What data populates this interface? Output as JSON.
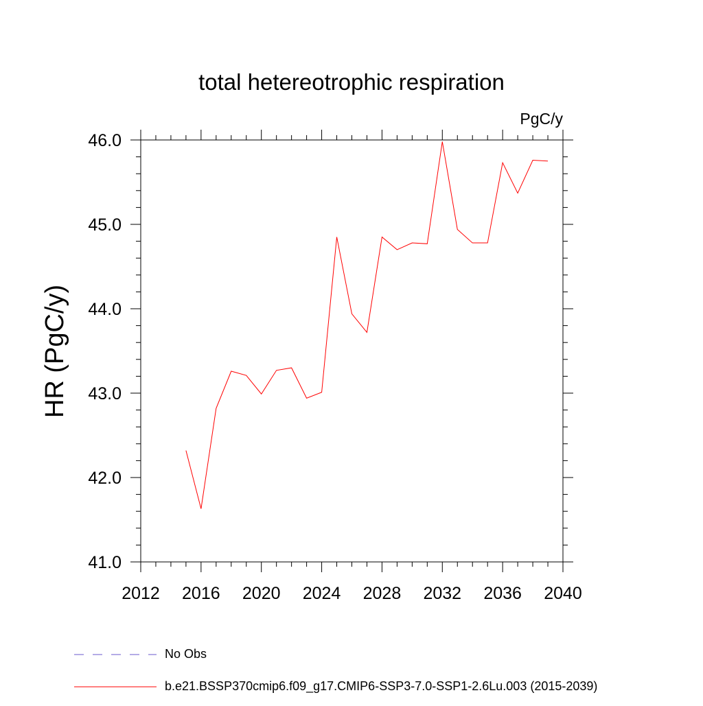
{
  "chart_data": {
    "type": "line",
    "title": "total hetereotrophic respiration",
    "units_label": "PgC/y",
    "ylabel": "HR  (PgC/y)",
    "xlabel": "",
    "xlim": [
      2012,
      2040
    ],
    "ylim": [
      41.0,
      46.0
    ],
    "x_ticks": [
      2012,
      2016,
      2020,
      2024,
      2028,
      2032,
      2036,
      2040
    ],
    "x_tick_labels": [
      "2012",
      "2016",
      "2020",
      "2024",
      "2028",
      "2032",
      "2036",
      "2040"
    ],
    "y_ticks": [
      41.0,
      42.0,
      43.0,
      44.0,
      45.0,
      46.0
    ],
    "y_tick_labels": [
      "41.0",
      "42.0",
      "43.0",
      "44.0",
      "45.0",
      "46.0"
    ],
    "x_minor_step": 1,
    "y_minor_step": 0.2,
    "grid": false,
    "legend_position": "bottom-left",
    "series": [
      {
        "name": "b.e21.BSSP370cmip6.f09_g17.CMIP6-SSP3-7.0-SSP1-2.6Lu.003 (2015-2039)",
        "color": "#ff0000",
        "style": "solid",
        "x": [
          2015,
          2016,
          2017,
          2018,
          2019,
          2020,
          2021,
          2022,
          2023,
          2024,
          2025,
          2026,
          2027,
          2028,
          2029,
          2030,
          2031,
          2032,
          2033,
          2034,
          2035,
          2036,
          2037,
          2038,
          2039
        ],
        "values": [
          42.32,
          41.63,
          42.82,
          43.26,
          43.21,
          42.99,
          43.27,
          43.3,
          42.94,
          43.01,
          44.85,
          43.94,
          43.72,
          44.85,
          44.7,
          44.78,
          44.77,
          45.98,
          44.94,
          44.78,
          44.78,
          45.73,
          45.37,
          45.76,
          45.75
        ]
      },
      {
        "name": "No Obs",
        "color": "#6a5acd",
        "style": "dashed",
        "x": [],
        "values": []
      }
    ]
  }
}
